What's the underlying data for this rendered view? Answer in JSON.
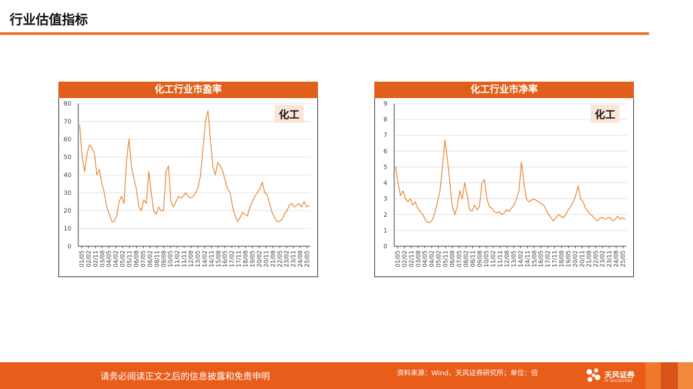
{
  "page": {
    "title": "行业估值指标",
    "disclaimer": "请务必阅读正文之后的信息披露和免责申明",
    "source": "资料来源：Wind、天风证券研究所；单位：倍",
    "logo_text": "天风证券",
    "logo_sub": "TF SECURITIES"
  },
  "colors": {
    "accent": "#e0601b",
    "line": "#e8822a",
    "rule": "#e8762b"
  },
  "chart_data": [
    {
      "type": "line",
      "title": "化工行业市盈率",
      "series": [
        {
          "name": "化工",
          "x": [
            "01/05",
            "01/09",
            "02/02",
            "02/05",
            "02/11",
            "03/05",
            "03/08",
            "03/11",
            "04/05",
            "04/08",
            "04/11",
            "05/02",
            "05/05",
            "05/08",
            "05/11",
            "06/02",
            "06/05",
            "06/08",
            "06/11",
            "07/02",
            "07/05",
            "07/08",
            "07/11",
            "08/02",
            "08/05",
            "08/08",
            "08/11",
            "09/02",
            "09/05",
            "09/08",
            "09/11",
            "10/02",
            "10/05",
            "10/08",
            "10/11",
            "11/02",
            "11/05",
            "11/08",
            "11/11",
            "12/02",
            "12/05",
            "12/08",
            "12/11",
            "13/02",
            "13/05",
            "13/08",
            "13/11",
            "14/02",
            "14/05",
            "14/08",
            "14/11",
            "15/02",
            "15/04",
            "15/05",
            "15/08",
            "15/11",
            "16/02",
            "16/05",
            "16/08",
            "16/11",
            "17/02",
            "17/05",
            "17/08",
            "17/11",
            "18/02",
            "18/05",
            "18/08",
            "18/11",
            "19/02",
            "19/05",
            "19/08",
            "19/11",
            "20/02",
            "20/05",
            "20/08",
            "20/11",
            "21/02",
            "21/05",
            "21/08",
            "21/11",
            "22/02",
            "22/05",
            "22/08",
            "22/11",
            "23/02",
            "23/05",
            "23/08",
            "23/11",
            "24/02",
            "24/05",
            "24/08",
            "24/11",
            "25/02",
            "25/05"
          ],
          "values": [
            68,
            50,
            42,
            52,
            57,
            55,
            52,
            40,
            43,
            35,
            30,
            22,
            18,
            14,
            14,
            17,
            25,
            28,
            24,
            48,
            60,
            45,
            38,
            32,
            22,
            20,
            26,
            24,
            42,
            30,
            20,
            18,
            22,
            20,
            20,
            42,
            45,
            25,
            22,
            25,
            28,
            27,
            28,
            30,
            28,
            27,
            28,
            30,
            33,
            40,
            55,
            70,
            76,
            60,
            45,
            40,
            47,
            45,
            42,
            37,
            32,
            30,
            22,
            17,
            14,
            16,
            19,
            18,
            17,
            22,
            25,
            28,
            30,
            32,
            36,
            30,
            29,
            24,
            19,
            16,
            14,
            14,
            15,
            18,
            20,
            23,
            24,
            22,
            23,
            24,
            22,
            25,
            22,
            23
          ]
        }
      ],
      "ylim": [
        0,
        80
      ],
      "yticks": [
        0,
        10,
        20,
        30,
        40,
        50,
        60,
        70,
        80
      ],
      "xticks": [
        "01/05",
        "02/02",
        "02/11",
        "03/08",
        "04/05",
        "04/02",
        "05/02",
        "05/11",
        "06/08",
        "07/05",
        "08/02",
        "08/11",
        "09/08",
        "10/05",
        "11/02",
        "11/11",
        "12/08",
        "13/05",
        "14/02",
        "14/11",
        "15/08",
        "16/05",
        "17/02",
        "17/11",
        "18/08",
        "19/05",
        "20/02",
        "20/11",
        "21/08",
        "22/05",
        "23/02",
        "23/11",
        "24/08",
        "25/05"
      ],
      "grid": true,
      "legend": "top-right"
    },
    {
      "type": "line",
      "title": "化工行业市净率",
      "series": [
        {
          "name": "化工",
          "x": [
            "01/05",
            "01/09",
            "02/02",
            "02/05",
            "02/11",
            "03/05",
            "03/08",
            "03/11",
            "04/05",
            "04/08",
            "04/11",
            "05/02",
            "05/05",
            "05/08",
            "05/11",
            "06/02",
            "06/05",
            "06/08",
            "06/11",
            "07/02",
            "07/05",
            "07/08",
            "07/11",
            "08/02",
            "08/05",
            "08/08",
            "08/11",
            "09/02",
            "09/05",
            "09/08",
            "09/11",
            "10/02",
            "10/05",
            "10/08",
            "10/11",
            "11/02",
            "11/05",
            "11/08",
            "11/11",
            "12/02",
            "12/05",
            "12/08",
            "12/11",
            "13/02",
            "13/05",
            "13/08",
            "13/11",
            "14/02",
            "14/05",
            "14/08",
            "14/11",
            "15/02",
            "15/04",
            "15/05",
            "15/08",
            "15/11",
            "16/02",
            "16/05",
            "16/08",
            "16/11",
            "17/02",
            "17/05",
            "17/08",
            "17/11",
            "18/02",
            "18/05",
            "18/08",
            "18/11",
            "19/02",
            "19/05",
            "19/08",
            "19/11",
            "20/02",
            "20/05",
            "20/08",
            "20/11",
            "21/02",
            "21/05",
            "21/08",
            "21/11",
            "22/02",
            "22/05",
            "22/08",
            "22/11",
            "23/02",
            "23/05",
            "23/08",
            "23/11",
            "24/02",
            "24/05",
            "24/08",
            "24/11",
            "25/02",
            "25/05"
          ],
          "values": [
            5.0,
            4.0,
            3.2,
            3.5,
            3.0,
            2.8,
            3.0,
            2.6,
            2.8,
            2.4,
            2.2,
            2.0,
            1.7,
            1.5,
            1.5,
            1.7,
            2.2,
            2.8,
            3.5,
            5.0,
            6.7,
            5.5,
            4.0,
            2.5,
            2.0,
            2.5,
            3.5,
            3.0,
            4.0,
            3.2,
            2.3,
            2.2,
            2.6,
            2.3,
            2.5,
            4.0,
            4.2,
            3.0,
            2.5,
            2.4,
            2.2,
            2.1,
            2.2,
            2.0,
            2.1,
            2.3,
            2.2,
            2.4,
            2.6,
            3.0,
            3.5,
            5.3,
            4.0,
            3.0,
            2.8,
            2.9,
            3.0,
            2.9,
            2.8,
            2.7,
            2.6,
            2.3,
            2.0,
            1.8,
            1.6,
            1.8,
            2.0,
            1.9,
            1.8,
            2.0,
            2.3,
            2.5,
            2.8,
            3.2,
            3.8,
            3.0,
            2.8,
            2.4,
            2.2,
            2.0,
            1.9,
            1.7,
            1.6,
            1.8,
            1.8,
            1.7,
            1.8,
            1.8,
            1.6,
            1.7,
            1.9,
            1.7,
            1.8,
            1.7
          ]
        }
      ],
      "ylim": [
        0,
        9
      ],
      "yticks": [
        0,
        1,
        2,
        3,
        4,
        5,
        6,
        7,
        8,
        9
      ],
      "xticks": [
        "01/05",
        "02/02",
        "02/11",
        "03/08",
        "04/05",
        "04/02",
        "05/02",
        "05/11",
        "06/08",
        "07/05",
        "08/02",
        "08/11",
        "09/08",
        "10/05",
        "11/02",
        "11/11",
        "12/08",
        "13/05",
        "14/02",
        "14/11",
        "15/08",
        "16/05",
        "17/02",
        "17/11",
        "18/08",
        "19/05",
        "20/02",
        "20/11",
        "21/08",
        "22/05",
        "23/02",
        "23/11",
        "24/08",
        "25/05"
      ],
      "grid": true,
      "legend": "top-right"
    }
  ]
}
